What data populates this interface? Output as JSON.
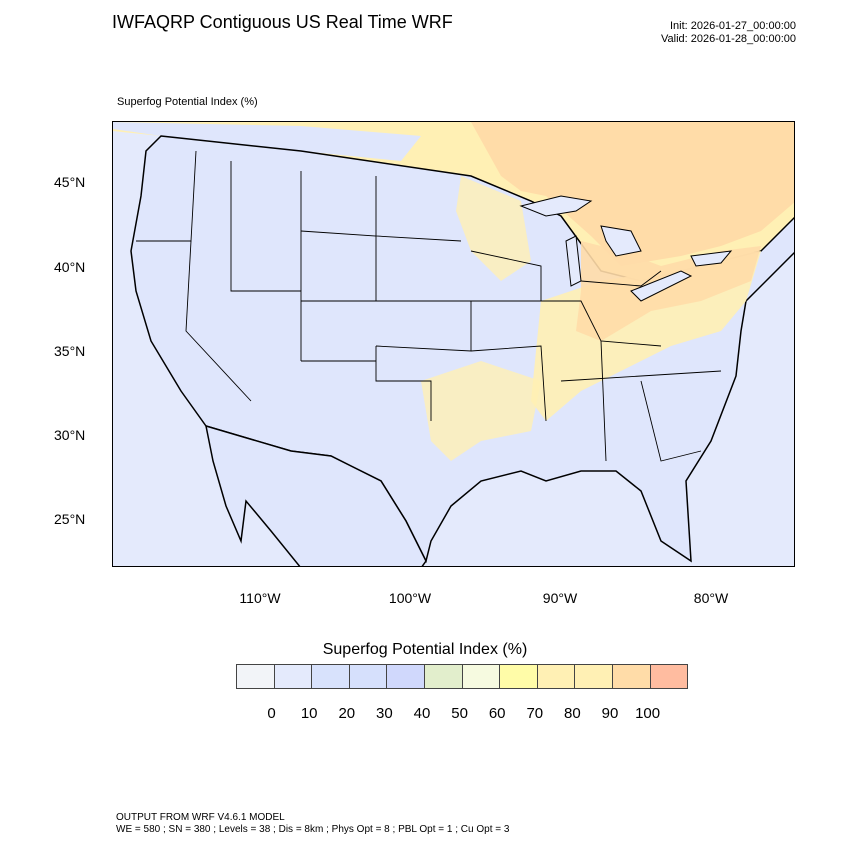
{
  "header": {
    "title": "IWFAQRP Contiguous US Real Time WRF",
    "init": "Init: 2026-01-27_00:00:00",
    "valid": "Valid: 2026-01-28_00:00:00"
  },
  "map": {
    "field_label": "Superfog Potential Index   (%)",
    "lat_labels": [
      "45°N",
      "40°N",
      "35°N",
      "30°N",
      "25°N"
    ],
    "lon_labels": [
      "110°W",
      "100°W",
      "90°W",
      "80°W"
    ],
    "colors": {
      "ocean": "#e4eafc",
      "land_low": "#dfe6fc",
      "yellow": "#fff0b4",
      "orange": "#ffdca8",
      "red": "#ffbca0",
      "green": "#e2eecc"
    }
  },
  "colorbar": {
    "title": "Superfog Potential Index  (%)",
    "labels": [
      "0",
      "10",
      "20",
      "30",
      "40",
      "50",
      "60",
      "70",
      "80",
      "90",
      "100"
    ],
    "colors": [
      "#f2f4f8",
      "#e4eafc",
      "#d8e2fc",
      "#d6e0fc",
      "#d0d8fc",
      "#e2eecc",
      "#f6fae0",
      "#fffca8",
      "#fff0b4",
      "#fff0b4",
      "#ffdca8",
      "#ffbca0"
    ]
  },
  "footer": {
    "line1": "OUTPUT FROM WRF V4.6.1 MODEL",
    "line2": "WE = 580 ; SN = 380 ; Levels = 38 ; Dis = 8km ; Phys Opt = 8 ; PBL Opt = 1 ; Cu Opt = 3"
  }
}
